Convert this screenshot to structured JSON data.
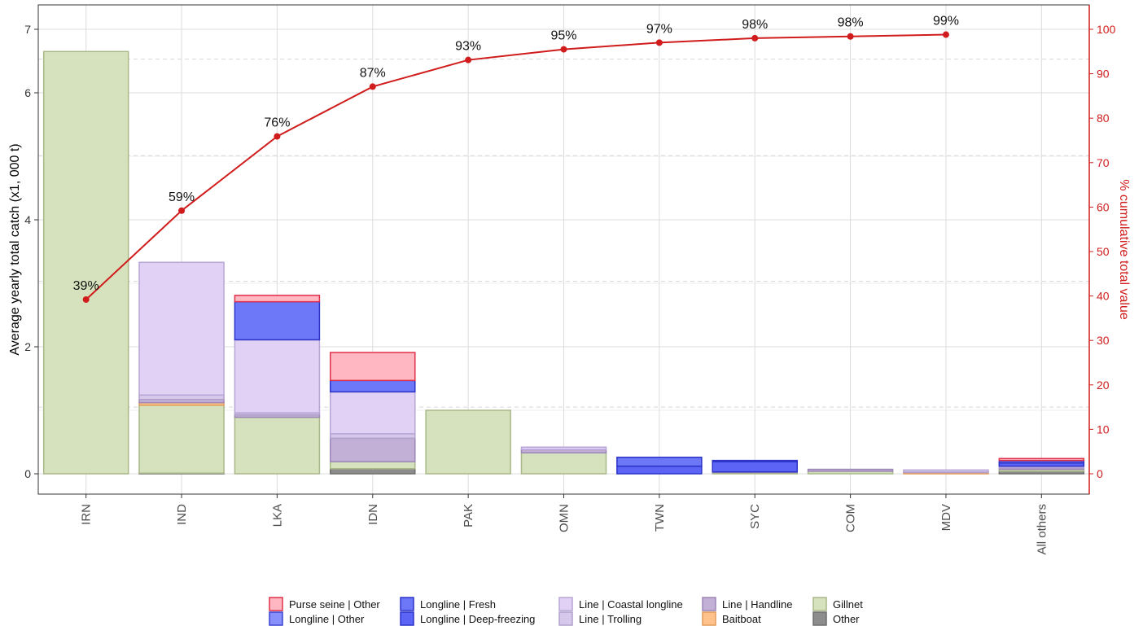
{
  "chart_data": {
    "type": "bar",
    "stacked": true,
    "categories": [
      "IRN",
      "IND",
      "LKA",
      "IDN",
      "PAK",
      "OMN",
      "TWN",
      "SYC",
      "COM",
      "MDV",
      "All others"
    ],
    "ylabel": "Average yearly total catch (x1, 000 t)",
    "y2label": "% cumulative total value",
    "ylim": [
      0,
      7.3
    ],
    "y2lim": [
      -4.5,
      105
    ],
    "yticks": [
      0,
      2,
      4,
      6,
      7
    ],
    "y2ticks": [
      0,
      10,
      20,
      30,
      40,
      50,
      60,
      70,
      80,
      90,
      100
    ],
    "grid": true,
    "legend_position": "bottom",
    "series": [
      {
        "name": "Other",
        "fill": "#8c8c8c",
        "stroke": "#6e6e6e",
        "values": [
          0,
          0.01,
          0,
          0.08,
          0,
          0,
          0,
          0,
          0,
          0,
          0.04
        ]
      },
      {
        "name": "Gillnet",
        "fill": "#d6e2bd",
        "stroke": "#a8b888",
        "values": [
          6.65,
          1.07,
          0.89,
          0.11,
          1.0,
          0.33,
          0,
          0.02,
          0.04,
          0,
          0.03
        ]
      },
      {
        "name": "Baitboat",
        "fill": "#ffc28a",
        "stroke": "#e39a58",
        "values": [
          0,
          0.04,
          0,
          0,
          0,
          0,
          0,
          0,
          0,
          0.02,
          0
        ]
      },
      {
        "name": "Line | Handline",
        "fill": "#c2b0d6",
        "stroke": "#9c86b8",
        "values": [
          0,
          0.05,
          0.04,
          0.37,
          0,
          0.05,
          0,
          0.01,
          0.03,
          0,
          0.02
        ]
      },
      {
        "name": "Line | Trolling",
        "fill": "#d6c8ea",
        "stroke": "#b0a0cc",
        "values": [
          0,
          0.07,
          0.03,
          0.07,
          0,
          0,
          0,
          0,
          0,
          0.01,
          0.01
        ]
      },
      {
        "name": "Line | Coastal longline",
        "fill": "#e0d1f5",
        "stroke": "#b7a5d6",
        "values": [
          0,
          2.09,
          1.15,
          0.66,
          0,
          0.04,
          0,
          0,
          0,
          0.03,
          0.02
        ]
      },
      {
        "name": "Longline | Deep-freezing",
        "fill": "#5c64f6",
        "stroke": "#2c34c8",
        "values": [
          0,
          0,
          0,
          0,
          0,
          0,
          0.12,
          0.16,
          0,
          0,
          0.05
        ]
      },
      {
        "name": "Longline | Fresh",
        "fill": "#6c78f8",
        "stroke": "#2c34c8",
        "values": [
          0,
          0,
          0.6,
          0.18,
          0,
          0,
          0.14,
          0.02,
          0,
          0,
          0.03
        ]
      },
      {
        "name": "Longline | Other",
        "fill": "#8890fb",
        "stroke": "#3a42d0",
        "values": [
          0,
          0,
          0,
          0,
          0,
          0,
          0,
          0,
          0,
          0,
          0.01
        ]
      },
      {
        "name": "Purse seine | Other",
        "fill": "#ffb7c1",
        "stroke": "#e0304a",
        "values": [
          0,
          0,
          0.1,
          0.44,
          0,
          0,
          0,
          0,
          0,
          0,
          0.03
        ]
      }
    ],
    "cumulative": {
      "name": "% cumulative total value",
      "color": "#d01c1c",
      "values": [
        39.2,
        59.2,
        75.9,
        87.1,
        93.1,
        95.5,
        97.0,
        98.0,
        98.4,
        98.8
      ],
      "labels": [
        "39%",
        "59%",
        "76%",
        "87%",
        "93%",
        "95%",
        "97%",
        "98%",
        "98%",
        "99%"
      ]
    },
    "legend_order": [
      "Purse seine | Other",
      "Longline | Other",
      "Longline | Fresh",
      "Longline | Deep-freezing",
      "Line | Coastal longline",
      "Line | Trolling",
      "Line | Handline",
      "Baitboat",
      "Gillnet",
      "Other"
    ]
  }
}
